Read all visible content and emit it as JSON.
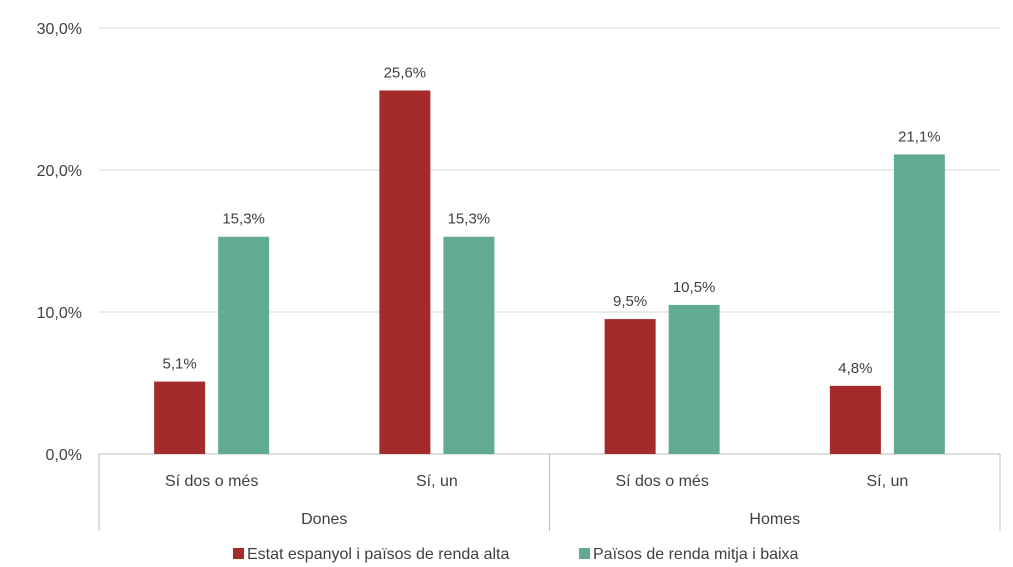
{
  "chart_data": {
    "type": "bar",
    "groups": [
      "Dones",
      "Homes"
    ],
    "categories": [
      "Sí dos o més",
      "Sí, un",
      "Sí dos o més",
      "Sí, un"
    ],
    "series": [
      {
        "name": "Estat espanyol i països de renda alta",
        "color": "#a52a2a",
        "values": [
          5.1,
          25.6,
          9.5,
          4.8
        ],
        "labels": [
          "5,1%",
          "25,6%",
          "9,5%",
          "4,8%"
        ]
      },
      {
        "name": "Països de renda mitja i baixa",
        "color": "#62ab93",
        "values": [
          15.3,
          15.3,
          10.5,
          21.1
        ],
        "labels": [
          "15,3%",
          "15,3%",
          "10,5%",
          "21,1%"
        ]
      }
    ],
    "ylim": [
      0,
      30
    ],
    "yticks": [
      0,
      10,
      20,
      30
    ],
    "ytick_labels": [
      "0,0%",
      "10,0%",
      "20,0%",
      "30,0%"
    ],
    "grid": true,
    "legend_position": "bottom",
    "title": "",
    "xlabel": "",
    "ylabel": ""
  }
}
